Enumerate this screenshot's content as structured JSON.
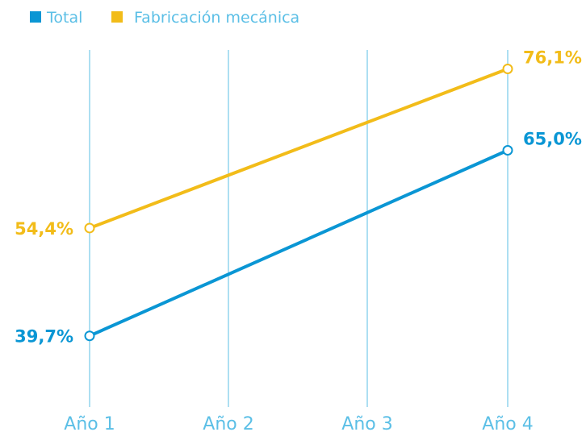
{
  "chart_data": {
    "type": "line",
    "categories": [
      "Año 1",
      "Año 2",
      "Año 3",
      "Año 4"
    ],
    "series": [
      {
        "name": "Total",
        "color": "#0a96d4",
        "values": [
          39.7,
          null,
          null,
          65.0
        ],
        "value_labels": [
          "39,7%",
          "",
          "",
          "65,0%"
        ]
      },
      {
        "name": "Fabricación mecánica",
        "color": "#f2bc19",
        "values": [
          54.4,
          null,
          null,
          76.1
        ],
        "value_labels": [
          "54,4%",
          "",
          "",
          "76,1%"
        ]
      }
    ],
    "ylim": [
      30,
      80
    ],
    "grid": "vertical",
    "legend_position": "top-left",
    "grid_color": "#5bbfe6",
    "tick_color": "#5bbfe6"
  }
}
